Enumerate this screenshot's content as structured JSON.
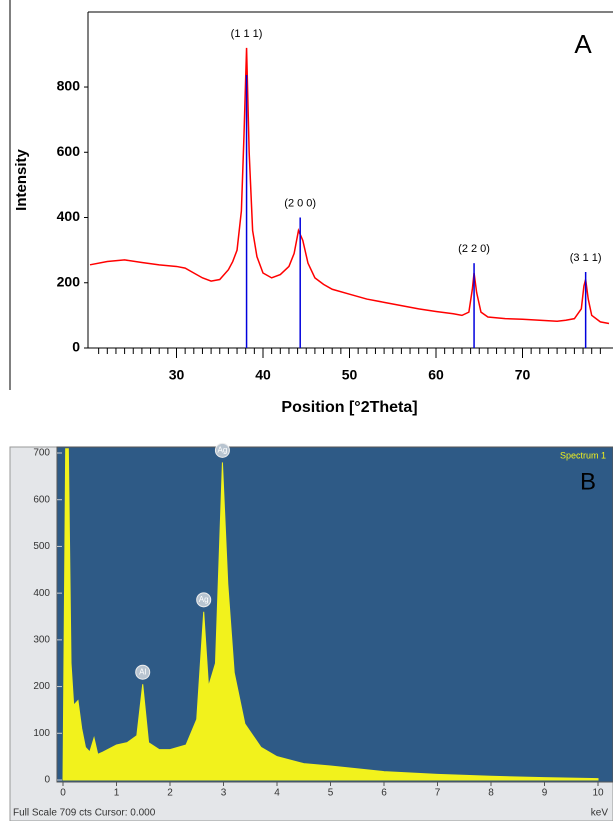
{
  "chart_data": [
    {
      "type": "line",
      "panel_label": "A",
      "ylabel": "Intensity",
      "xlabel": "Position [°2Theta]",
      "xlim": [
        20,
        80
      ],
      "ylim": [
        0,
        1030
      ],
      "xticks": [
        30,
        40,
        50,
        60,
        70
      ],
      "xminorticks": [
        21,
        22,
        23,
        24,
        25,
        26,
        27,
        28,
        29,
        31,
        32,
        33,
        34,
        35,
        36,
        37,
        38,
        39,
        41,
        42,
        43,
        44,
        45,
        46,
        47,
        48,
        49,
        51,
        52,
        53,
        54,
        55,
        56,
        57,
        58,
        59,
        61,
        62,
        63,
        64,
        65,
        66,
        67,
        68,
        69,
        71,
        72,
        73,
        74,
        75,
        76,
        77,
        78,
        79
      ],
      "yticks": [
        0,
        200,
        400,
        600,
        800
      ],
      "series": [
        {
          "color": "#ff0000",
          "x": [
            20,
            22,
            24,
            26,
            28,
            30,
            31,
            32,
            33,
            34,
            35,
            36,
            36.5,
            37,
            37.5,
            37.8,
            38.1,
            38.4,
            38.8,
            39.3,
            40,
            41,
            42,
            43,
            43.6,
            44.1,
            44.6,
            45.2,
            46,
            47,
            48,
            50,
            52,
            54,
            56,
            58,
            60,
            62,
            63,
            63.8,
            64.2,
            64.4,
            64.7,
            65.2,
            66,
            68,
            70,
            72,
            74,
            75,
            76,
            76.8,
            77.1,
            77.3,
            77.6,
            78,
            79,
            80
          ],
          "values": [
            255,
            265,
            270,
            262,
            255,
            250,
            245,
            230,
            215,
            205,
            210,
            240,
            265,
            300,
            420,
            650,
            920,
            600,
            360,
            280,
            230,
            215,
            225,
            250,
            290,
            360,
            330,
            260,
            215,
            195,
            180,
            165,
            150,
            140,
            130,
            120,
            112,
            105,
            100,
            110,
            180,
            230,
            170,
            110,
            95,
            90,
            88,
            85,
            82,
            85,
            90,
            120,
            190,
            210,
            150,
            100,
            80,
            75
          ]
        }
      ],
      "reference_peaks": {
        "color": "#0000dd",
        "x": [
          38.1,
          44.3,
          64.4,
          77.3
        ],
        "values": [
          837,
          400,
          260,
          233
        ],
        "labels": [
          "(1 1 1)",
          "(2 0 0)",
          "(2 2 0)",
          "(3 1 1)"
        ]
      }
    },
    {
      "type": "area",
      "panel_label": "B",
      "spectrum_label": "Spectrum 1",
      "footer": "Full Scale 709 cts Cursor: 0.000",
      "xunit": "keV",
      "xlim": [
        0,
        10
      ],
      "ylim": [
        0,
        700
      ],
      "xticks": [
        0,
        1,
        2,
        3,
        4,
        5,
        6,
        7,
        8,
        9,
        10
      ],
      "yticks": [
        0,
        100,
        200,
        300,
        400,
        500,
        600,
        700
      ],
      "color": "#f2f21c",
      "background": "#2e5a86",
      "x": [
        0,
        0.05,
        0.1,
        0.15,
        0.2,
        0.28,
        0.35,
        0.42,
        0.5,
        0.58,
        0.65,
        0.75,
        1.0,
        1.2,
        1.38,
        1.49,
        1.6,
        1.8,
        2.0,
        2.3,
        2.5,
        2.63,
        2.72,
        2.85,
        2.98,
        3.08,
        3.2,
        3.4,
        3.7,
        4.0,
        4.5,
        5,
        6,
        7,
        8,
        9,
        10
      ],
      "values": [
        0,
        709,
        709,
        250,
        160,
        170,
        110,
        70,
        60,
        90,
        55,
        60,
        75,
        80,
        95,
        205,
        80,
        65,
        65,
        75,
        130,
        360,
        200,
        250,
        680,
        420,
        230,
        120,
        70,
        50,
        35,
        30,
        18,
        12,
        8,
        5,
        3
      ],
      "annotations": [
        {
          "text": "Al",
          "x": 1.49
        },
        {
          "text": "Ag",
          "x": 2.63
        },
        {
          "text": "Ag",
          "x": 2.98
        }
      ]
    }
  ]
}
